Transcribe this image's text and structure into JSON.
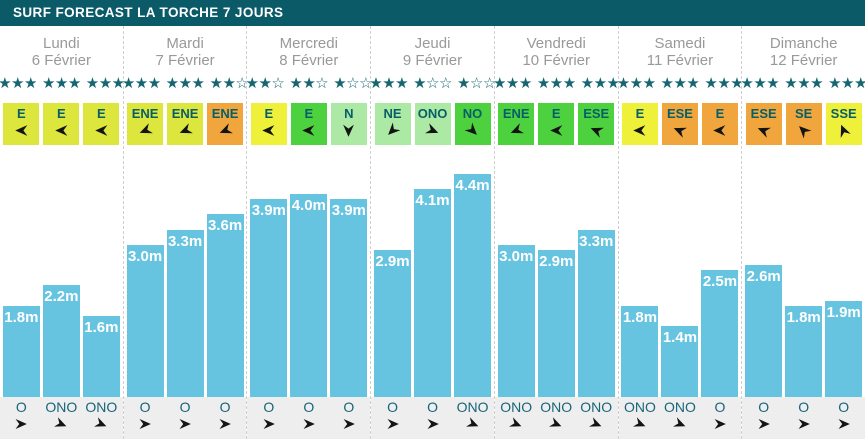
{
  "title": "SURF FORECAST LA TORCHE 7 JOURS",
  "stars_per_group": 3,
  "colors": {
    "header_bg": "#0a5a68",
    "day_text": "#999999",
    "star": "#156671",
    "wind_text": "#085e68",
    "arrow": "#141414",
    "bar": "#66c4e0",
    "bar_label": "#ffffff",
    "strip_bg": "#eeeeee",
    "dir_text": "#17657a",
    "wind_palette": {
      "yellowgreen": "#dce63c",
      "yellow": "#eff03a",
      "green": "#4ed13f",
      "lightgreen": "#abe9a4",
      "orange": "#f0a63c"
    }
  },
  "compass_degrees": {
    "N": 0,
    "NE": 45,
    "ENE": 67.5,
    "E": 90,
    "ESE": 112.5,
    "SE": 135,
    "SSE": 157.5,
    "S": 180,
    "SSO": 202.5,
    "SO": 225,
    "OSO": 247.5,
    "O": 270,
    "ONO": 292.5,
    "NO": 315,
    "NNO": 337.5
  },
  "days": [
    {
      "name": "Lundi",
      "date": "6 Février",
      "stars": [
        3,
        3,
        3
      ],
      "wind": [
        {
          "dir": "E",
          "color": "yellowgreen"
        },
        {
          "dir": "E",
          "color": "yellowgreen"
        },
        {
          "dir": "E",
          "color": "yellowgreen"
        }
      ],
      "waves": [
        {
          "height_m": 1.8,
          "label": "1.8m",
          "swell_dir": "O"
        },
        {
          "height_m": 2.2,
          "label": "2.2m",
          "swell_dir": "ONO"
        },
        {
          "height_m": 1.6,
          "label": "1.6m",
          "swell_dir": "ONO"
        }
      ]
    },
    {
      "name": "Mardi",
      "date": "7 Février",
      "stars": [
        3,
        3,
        2
      ],
      "wind": [
        {
          "dir": "ENE",
          "color": "yellowgreen"
        },
        {
          "dir": "ENE",
          "color": "yellowgreen"
        },
        {
          "dir": "ENE",
          "color": "orange"
        }
      ],
      "waves": [
        {
          "height_m": 3.0,
          "label": "3.0m",
          "swell_dir": "O"
        },
        {
          "height_m": 3.3,
          "label": "3.3m",
          "swell_dir": "O"
        },
        {
          "height_m": 3.6,
          "label": "3.6m",
          "swell_dir": "O"
        }
      ]
    },
    {
      "name": "Mercredi",
      "date": "8 Février",
      "stars": [
        2,
        2,
        1
      ],
      "wind": [
        {
          "dir": "E",
          "color": "yellow"
        },
        {
          "dir": "E",
          "color": "green"
        },
        {
          "dir": "N",
          "color": "lightgreen"
        }
      ],
      "waves": [
        {
          "height_m": 3.9,
          "label": "3.9m",
          "swell_dir": "O"
        },
        {
          "height_m": 4.0,
          "label": "4.0m",
          "swell_dir": "O"
        },
        {
          "height_m": 3.9,
          "label": "3.9m",
          "swell_dir": "O"
        }
      ]
    },
    {
      "name": "Jeudi",
      "date": "9 Février",
      "stars": [
        3,
        1,
        1
      ],
      "wind": [
        {
          "dir": "NE",
          "color": "lightgreen"
        },
        {
          "dir": "ONO",
          "color": "lightgreen"
        },
        {
          "dir": "NO",
          "color": "green"
        }
      ],
      "waves": [
        {
          "height_m": 2.9,
          "label": "2.9m",
          "swell_dir": "O"
        },
        {
          "height_m": 4.1,
          "label": "4.1m",
          "swell_dir": "O"
        },
        {
          "height_m": 4.4,
          "label": "4.4m",
          "swell_dir": "ONO"
        }
      ]
    },
    {
      "name": "Vendredi",
      "date": "10 Février",
      "stars": [
        3,
        3,
        3
      ],
      "wind": [
        {
          "dir": "ENE",
          "color": "green"
        },
        {
          "dir": "E",
          "color": "green"
        },
        {
          "dir": "ESE",
          "color": "green"
        }
      ],
      "waves": [
        {
          "height_m": 3.0,
          "label": "3.0m",
          "swell_dir": "ONO"
        },
        {
          "height_m": 2.9,
          "label": "2.9m",
          "swell_dir": "ONO"
        },
        {
          "height_m": 3.3,
          "label": "3.3m",
          "swell_dir": "ONO"
        }
      ]
    },
    {
      "name": "Samedi",
      "date": "11 Février",
      "stars": [
        3,
        3,
        3
      ],
      "wind": [
        {
          "dir": "E",
          "color": "yellow"
        },
        {
          "dir": "ESE",
          "color": "orange"
        },
        {
          "dir": "E",
          "color": "orange"
        }
      ],
      "waves": [
        {
          "height_m": 1.8,
          "label": "1.8m",
          "swell_dir": "ONO"
        },
        {
          "height_m": 1.4,
          "label": "1.4m",
          "swell_dir": "ONO"
        },
        {
          "height_m": 2.5,
          "label": "2.5m",
          "swell_dir": "O"
        }
      ]
    },
    {
      "name": "Dimanche",
      "date": "12 Février",
      "stars": [
        3,
        3,
        3
      ],
      "wind": [
        {
          "dir": "ESE",
          "color": "orange"
        },
        {
          "dir": "SE",
          "color": "orange"
        },
        {
          "dir": "SSE",
          "color": "yellow"
        }
      ],
      "waves": [
        {
          "height_m": 2.6,
          "label": "2.6m",
          "swell_dir": "O"
        },
        {
          "height_m": 1.8,
          "label": "1.8m",
          "swell_dir": "O"
        },
        {
          "height_m": 1.9,
          "label": "1.9m",
          "swell_dir": "O"
        }
      ]
    }
  ],
  "chart_data": {
    "type": "bar",
    "title": "SURF FORECAST LA TORCHE 7 JOURS",
    "categories": [
      "Lundi 6 Février",
      "Mardi 7 Février",
      "Mercredi 8 Février",
      "Jeudi 9 Février",
      "Vendredi 10 Février",
      "Samedi 11 Février",
      "Dimanche 12 Février"
    ],
    "bars_per_day": 3,
    "values_m": [
      [
        1.8,
        2.2,
        1.6
      ],
      [
        3.0,
        3.3,
        3.6
      ],
      [
        3.9,
        4.0,
        3.9
      ],
      [
        2.9,
        4.1,
        4.4
      ],
      [
        3.0,
        2.9,
        3.3
      ],
      [
        1.8,
        1.4,
        2.5
      ],
      [
        2.6,
        1.8,
        1.9
      ]
    ],
    "bar_labels": [
      [
        "1.8m",
        "2.2m",
        "1.6m"
      ],
      [
        "3.0m",
        "3.3m",
        "3.6m"
      ],
      [
        "3.9m",
        "4.0m",
        "3.9m"
      ],
      [
        "2.9m",
        "4.1m",
        "4.4m"
      ],
      [
        "3.0m",
        "2.9m",
        "3.3m"
      ],
      [
        "1.8m",
        "1.4m",
        "2.5m"
      ],
      [
        "2.6m",
        "1.8m",
        "1.9m"
      ]
    ],
    "star_ratings": [
      [
        3,
        3,
        3
      ],
      [
        3,
        3,
        2
      ],
      [
        2,
        2,
        1
      ],
      [
        3,
        1,
        1
      ],
      [
        3,
        3,
        3
      ],
      [
        3,
        3,
        3
      ],
      [
        3,
        3,
        3
      ]
    ],
    "wind_directions": [
      [
        "E",
        "E",
        "E"
      ],
      [
        "ENE",
        "ENE",
        "ENE"
      ],
      [
        "E",
        "E",
        "N"
      ],
      [
        "NE",
        "ONO",
        "NO"
      ],
      [
        "ENE",
        "E",
        "ESE"
      ],
      [
        "E",
        "ESE",
        "E"
      ],
      [
        "ESE",
        "SE",
        "SSE"
      ]
    ],
    "swell_directions": [
      [
        "O",
        "ONO",
        "ONO"
      ],
      [
        "O",
        "O",
        "O"
      ],
      [
        "O",
        "O",
        "O"
      ],
      [
        "O",
        "O",
        "ONO"
      ],
      [
        "ONO",
        "ONO",
        "ONO"
      ],
      [
        "ONO",
        "ONO",
        "O"
      ],
      [
        "O",
        "O",
        "O"
      ]
    ],
    "unit": "m",
    "ylim": [
      0,
      4.8
    ],
    "bar_color": "#66c4e0",
    "legend": "none",
    "grid": "off"
  }
}
